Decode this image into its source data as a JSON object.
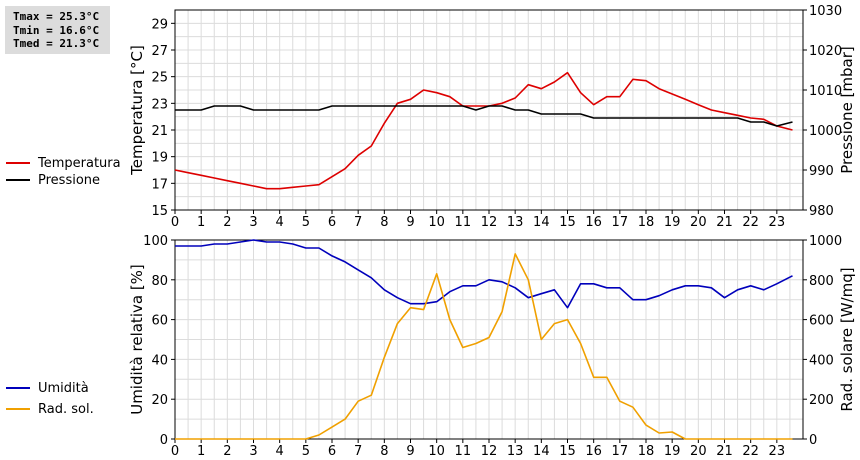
{
  "stats": {
    "tmax": "Tmax = 25.3°C",
    "tmin": "Tmin = 16.6°C",
    "tmed": "Tmed = 21.3°C"
  },
  "chart_data": [
    {
      "type": "line",
      "x_ticks": [
        0,
        1,
        2,
        3,
        4,
        5,
        6,
        7,
        8,
        9,
        10,
        11,
        12,
        13,
        14,
        15,
        16,
        17,
        18,
        19,
        20,
        21,
        22,
        23
      ],
      "xlim": [
        0,
        24
      ],
      "ylabel_left": "Temperatura [°C]",
      "ylabel_right": "Pressione [mbar]",
      "ylim_left": [
        15,
        30
      ],
      "yticks_left": [
        15,
        17,
        19,
        21,
        23,
        25,
        27,
        29
      ],
      "ylim_right": [
        980,
        1030
      ],
      "yticks_right": [
        980,
        990,
        1000,
        1010,
        1020,
        1030
      ],
      "grid": true,
      "legend_placement": "left",
      "series": [
        {
          "name": "Temperatura",
          "axis": "left",
          "color": "#dd0000",
          "x": [
            0,
            0.5,
            1,
            1.5,
            2,
            2.5,
            3,
            3.5,
            4,
            4.5,
            5,
            5.5,
            6,
            6.5,
            7,
            7.5,
            8,
            8.5,
            9,
            9.5,
            10,
            10.5,
            11,
            11.5,
            12,
            12.5,
            13,
            13.5,
            14,
            14.5,
            15,
            15.5,
            16,
            16.5,
            17,
            17.5,
            18,
            18.5,
            19,
            19.5,
            20,
            20.5,
            21,
            21.5,
            22,
            22.5,
            23,
            23.6
          ],
          "values": [
            18.0,
            17.8,
            17.6,
            17.4,
            17.2,
            17.0,
            16.8,
            16.6,
            16.6,
            16.7,
            16.8,
            16.9,
            17.5,
            18.1,
            19.1,
            19.8,
            21.5,
            23.0,
            23.3,
            24.0,
            23.8,
            23.5,
            22.8,
            22.8,
            22.8,
            23.0,
            23.4,
            24.4,
            24.1,
            24.6,
            25.3,
            23.8,
            22.9,
            23.5,
            23.5,
            24.8,
            24.7,
            24.1,
            23.7,
            23.3,
            22.9,
            22.5,
            22.3,
            22.1,
            21.9,
            21.8,
            21.3,
            21.0
          ]
        },
        {
          "name": "Pressione",
          "axis": "right",
          "color": "#000000",
          "x": [
            0,
            1,
            1.5,
            2,
            2.5,
            3,
            3.5,
            4,
            4.5,
            5,
            5.5,
            6,
            6.5,
            7,
            7.5,
            8,
            8.5,
            9,
            9.5,
            10,
            10.5,
            11,
            11.5,
            12,
            12.5,
            13,
            13.5,
            14,
            14.5,
            15,
            15.5,
            16,
            16.5,
            17,
            17.5,
            18,
            18.5,
            19,
            19.5,
            20,
            20.5,
            21,
            21.5,
            22,
            22.5,
            23,
            23.6
          ],
          "values": [
            1005,
            1005,
            1006,
            1006,
            1006,
            1005,
            1005,
            1005,
            1005,
            1005,
            1005,
            1006,
            1006,
            1006,
            1006,
            1006,
            1006,
            1006,
            1006,
            1006,
            1006,
            1006,
            1005,
            1006,
            1006,
            1005,
            1005,
            1004,
            1004,
            1004,
            1004,
            1003,
            1003,
            1003,
            1003,
            1003,
            1003,
            1003,
            1003,
            1003,
            1003,
            1003,
            1003,
            1002,
            1002,
            1001,
            1002
          ]
        }
      ]
    },
    {
      "type": "line",
      "x_ticks": [
        0,
        1,
        2,
        3,
        4,
        5,
        6,
        7,
        8,
        9,
        10,
        11,
        12,
        13,
        14,
        15,
        16,
        17,
        18,
        19,
        20,
        21,
        22,
        23
      ],
      "xlim": [
        0,
        24
      ],
      "ylabel_left": "Umidità relativa [%]",
      "ylabel_right": "Rad. solare [W/mq]",
      "ylim_left": [
        0,
        100
      ],
      "yticks_left": [
        0,
        20,
        40,
        60,
        80,
        100
      ],
      "ylim_right": [
        0,
        1000
      ],
      "yticks_right": [
        0,
        200,
        400,
        600,
        800,
        1000
      ],
      "grid": true,
      "legend_placement": "left",
      "series": [
        {
          "name": "Umidità",
          "axis": "left",
          "color": "#0000bb",
          "x": [
            0,
            1,
            1.5,
            2,
            2.5,
            3,
            3.5,
            4,
            4.5,
            5,
            5.5,
            6,
            6.5,
            7,
            7.5,
            8,
            8.5,
            9,
            9.5,
            10,
            10.5,
            11,
            11.5,
            12,
            12.5,
            13,
            13.5,
            14,
            14.5,
            15,
            15.5,
            16,
            16.5,
            17,
            17.5,
            18,
            18.5,
            19,
            19.5,
            20,
            20.5,
            21,
            21.5,
            22,
            22.5,
            23,
            23.6
          ],
          "values": [
            97,
            97,
            98,
            98,
            99,
            100,
            99,
            99,
            98,
            96,
            96,
            92,
            89,
            85,
            81,
            75,
            71,
            68,
            68,
            69,
            74,
            77,
            77,
            80,
            79,
            76,
            71,
            73,
            75,
            66,
            78,
            78,
            76,
            76,
            70,
            70,
            72,
            75,
            77,
            77,
            76,
            71,
            75,
            77,
            75,
            78,
            82
          ]
        },
        {
          "name": "Rad. sol.",
          "axis": "right",
          "color": "#f0a000",
          "x": [
            0,
            0.5,
            1,
            1.5,
            2,
            2.5,
            3,
            3.5,
            4,
            4.5,
            5,
            5.5,
            6,
            6.5,
            7,
            7.5,
            8,
            8.5,
            9,
            9.5,
            10,
            10.5,
            11,
            11.5,
            12,
            12.5,
            13,
            13.5,
            14,
            14.5,
            15,
            15.5,
            16,
            16.5,
            17,
            17.5,
            18,
            18.5,
            19,
            19.5,
            20,
            20.5,
            21,
            21.5,
            22,
            22.5,
            23,
            23.6
          ],
          "values": [
            0,
            0,
            0,
            0,
            0,
            0,
            0,
            0,
            0,
            0,
            0,
            20,
            60,
            100,
            190,
            220,
            410,
            580,
            660,
            650,
            830,
            600,
            460,
            480,
            510,
            640,
            930,
            800,
            500,
            580,
            600,
            480,
            310,
            310,
            190,
            160,
            70,
            30,
            35,
            0,
            0,
            0,
            0,
            0,
            0,
            0,
            0,
            0
          ]
        }
      ]
    }
  ]
}
